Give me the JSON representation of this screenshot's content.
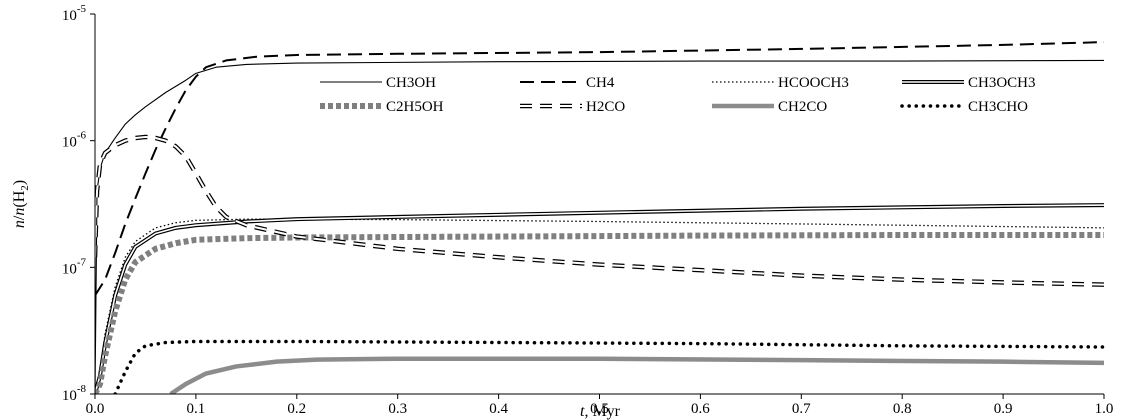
{
  "chart_data": {
    "type": "line",
    "title": "",
    "xlabel_italic": "t",
    "xlabel_rest": ", Myr",
    "ylabel": {
      "italic1": "n",
      "mid": "/",
      "italic2": "n",
      "rest": "(H",
      "sub": "2",
      "close": ")"
    },
    "x_ticks": [
      "0.0",
      "0.1",
      "0.2",
      "0.3",
      "0.4",
      "0.5",
      "0.6",
      "0.7",
      "0.8",
      "0.9",
      "1.0"
    ],
    "y_ticks": [
      {
        "base": "10",
        "exp": "-8"
      },
      {
        "base": "10",
        "exp": "-7"
      },
      {
        "base": "10",
        "exp": "-6"
      },
      {
        "base": "10",
        "exp": "-5"
      }
    ],
    "xlim": [
      0,
      1
    ],
    "ylim": [
      1e-08,
      1e-05
    ],
    "yscale": "log",
    "grid": false,
    "legend_position": "top-right",
    "series": [
      {
        "name": "CH3OH",
        "style": "thin-solid",
        "color": "#000000",
        "points": [
          [
            0.0,
            1e-08
          ],
          [
            0.002,
            4e-07
          ],
          [
            0.005,
            6e-07
          ],
          [
            0.01,
            8e-07
          ],
          [
            0.02,
            1.05e-06
          ],
          [
            0.03,
            1.35e-06
          ],
          [
            0.04,
            1.6e-06
          ],
          [
            0.05,
            1.85e-06
          ],
          [
            0.07,
            2.4e-06
          ],
          [
            0.09,
            3e-06
          ],
          [
            0.1,
            3.4e-06
          ],
          [
            0.12,
            3.8e-06
          ],
          [
            0.15,
            4e-06
          ],
          [
            0.2,
            4.1e-06
          ],
          [
            0.4,
            4.2e-06
          ],
          [
            0.6,
            4.25e-06
          ],
          [
            0.8,
            4.25e-06
          ],
          [
            1.0,
            4.3e-06
          ]
        ]
      },
      {
        "name": "CH4",
        "style": "long-dash",
        "color": "#000000",
        "points": [
          [
            0.0,
            6e-08
          ],
          [
            0.01,
            8e-08
          ],
          [
            0.02,
            1.3e-07
          ],
          [
            0.03,
            2.2e-07
          ],
          [
            0.04,
            3.5e-07
          ],
          [
            0.05,
            5.5e-07
          ],
          [
            0.06,
            8.5e-07
          ],
          [
            0.07,
            1.25e-06
          ],
          [
            0.08,
            1.8e-06
          ],
          [
            0.09,
            2.5e-06
          ],
          [
            0.1,
            3.2e-06
          ],
          [
            0.11,
            3.8e-06
          ],
          [
            0.13,
            4.3e-06
          ],
          [
            0.16,
            4.6e-06
          ],
          [
            0.2,
            4.75e-06
          ],
          [
            0.3,
            4.85e-06
          ],
          [
            0.5,
            5e-06
          ],
          [
            0.7,
            5.3e-06
          ],
          [
            0.9,
            5.7e-06
          ],
          [
            1.0,
            6e-06
          ]
        ]
      },
      {
        "name": "HCOOCH3",
        "style": "dotted-fine",
        "color": "#000000",
        "points": [
          [
            0.0,
            1e-08
          ],
          [
            0.005,
            1.5e-08
          ],
          [
            0.01,
            3e-08
          ],
          [
            0.02,
            7e-08
          ],
          [
            0.03,
            1.2e-07
          ],
          [
            0.04,
            1.6e-07
          ],
          [
            0.06,
            2.05e-07
          ],
          [
            0.08,
            2.25e-07
          ],
          [
            0.1,
            2.35e-07
          ],
          [
            0.15,
            2.4e-07
          ],
          [
            0.2,
            2.4e-07
          ],
          [
            0.3,
            2.38e-07
          ],
          [
            0.5,
            2.3e-07
          ],
          [
            0.7,
            2.2e-07
          ],
          [
            0.9,
            2.1e-07
          ],
          [
            1.0,
            2.05e-07
          ]
        ]
      },
      {
        "name": "CH3OCH3",
        "style": "double-line",
        "color": "#000000",
        "points": [
          [
            0.0,
            1e-08
          ],
          [
            0.005,
            1.4e-08
          ],
          [
            0.01,
            2.5e-08
          ],
          [
            0.02,
            6e-08
          ],
          [
            0.03,
            1.05e-07
          ],
          [
            0.04,
            1.45e-07
          ],
          [
            0.06,
            1.85e-07
          ],
          [
            0.08,
            2.05e-07
          ],
          [
            0.1,
            2.15e-07
          ],
          [
            0.15,
            2.3e-07
          ],
          [
            0.2,
            2.4e-07
          ],
          [
            0.3,
            2.5e-07
          ],
          [
            0.5,
            2.7e-07
          ],
          [
            0.7,
            2.9e-07
          ],
          [
            0.9,
            3.05e-07
          ],
          [
            1.0,
            3.1e-07
          ]
        ]
      },
      {
        "name": "C2H5OH",
        "style": "thick-gray-dotted",
        "color": "#808080",
        "points": [
          [
            0.0,
            1e-08
          ],
          [
            0.005,
            1.2e-08
          ],
          [
            0.01,
            2e-08
          ],
          [
            0.02,
            4.5e-08
          ],
          [
            0.03,
            8e-08
          ],
          [
            0.04,
            1.1e-07
          ],
          [
            0.06,
            1.4e-07
          ],
          [
            0.08,
            1.55e-07
          ],
          [
            0.1,
            1.65e-07
          ],
          [
            0.15,
            1.7e-07
          ],
          [
            0.2,
            1.72e-07
          ],
          [
            0.4,
            1.75e-07
          ],
          [
            0.6,
            1.78e-07
          ],
          [
            0.8,
            1.8e-07
          ],
          [
            1.0,
            1.8e-07
          ]
        ]
      },
      {
        "name": "H2CO",
        "style": "hollow-dash",
        "color": "#000000",
        "points": [
          [
            0.0,
            1.2e-07
          ],
          [
            0.002,
            4e-07
          ],
          [
            0.005,
            6.5e-07
          ],
          [
            0.01,
            8e-07
          ],
          [
            0.02,
            9.2e-07
          ],
          [
            0.03,
            1e-06
          ],
          [
            0.04,
            1.05e-06
          ],
          [
            0.05,
            1.07e-06
          ],
          [
            0.06,
            1.05e-06
          ],
          [
            0.07,
            1e-06
          ],
          [
            0.08,
            9e-07
          ],
          [
            0.09,
            7.5e-07
          ],
          [
            0.1,
            5.5e-07
          ],
          [
            0.11,
            4e-07
          ],
          [
            0.12,
            3e-07
          ],
          [
            0.13,
            2.5e-07
          ],
          [
            0.15,
            2.15e-07
          ],
          [
            0.2,
            1.75e-07
          ],
          [
            0.3,
            1.4e-07
          ],
          [
            0.4,
            1.2e-07
          ],
          [
            0.5,
            1.05e-07
          ],
          [
            0.6,
            9.5e-08
          ],
          [
            0.7,
            8.6e-08
          ],
          [
            0.8,
            8e-08
          ],
          [
            0.9,
            7.6e-08
          ],
          [
            1.0,
            7.3e-08
          ]
        ]
      },
      {
        "name": "CH2CO",
        "style": "thick-gray-solid",
        "color": "#8c8c8c",
        "points": [
          [
            0.075,
            1e-08
          ],
          [
            0.09,
            1.2e-08
          ],
          [
            0.11,
            1.45e-08
          ],
          [
            0.14,
            1.65e-08
          ],
          [
            0.18,
            1.8e-08
          ],
          [
            0.22,
            1.87e-08
          ],
          [
            0.3,
            1.9e-08
          ],
          [
            0.5,
            1.9e-08
          ],
          [
            0.7,
            1.85e-08
          ],
          [
            0.9,
            1.8e-08
          ],
          [
            1.0,
            1.76e-08
          ]
        ]
      },
      {
        "name": "CH3CHO",
        "style": "bold-dotted",
        "color": "#000000",
        "points": [
          [
            0.02,
            1e-08
          ],
          [
            0.03,
            1.5e-08
          ],
          [
            0.04,
            2.1e-08
          ],
          [
            0.05,
            2.4e-08
          ],
          [
            0.07,
            2.55e-08
          ],
          [
            0.1,
            2.6e-08
          ],
          [
            0.2,
            2.6e-08
          ],
          [
            0.4,
            2.55e-08
          ],
          [
            0.6,
            2.5e-08
          ],
          [
            0.8,
            2.4e-08
          ],
          [
            1.0,
            2.35e-08
          ]
        ]
      }
    ]
  }
}
